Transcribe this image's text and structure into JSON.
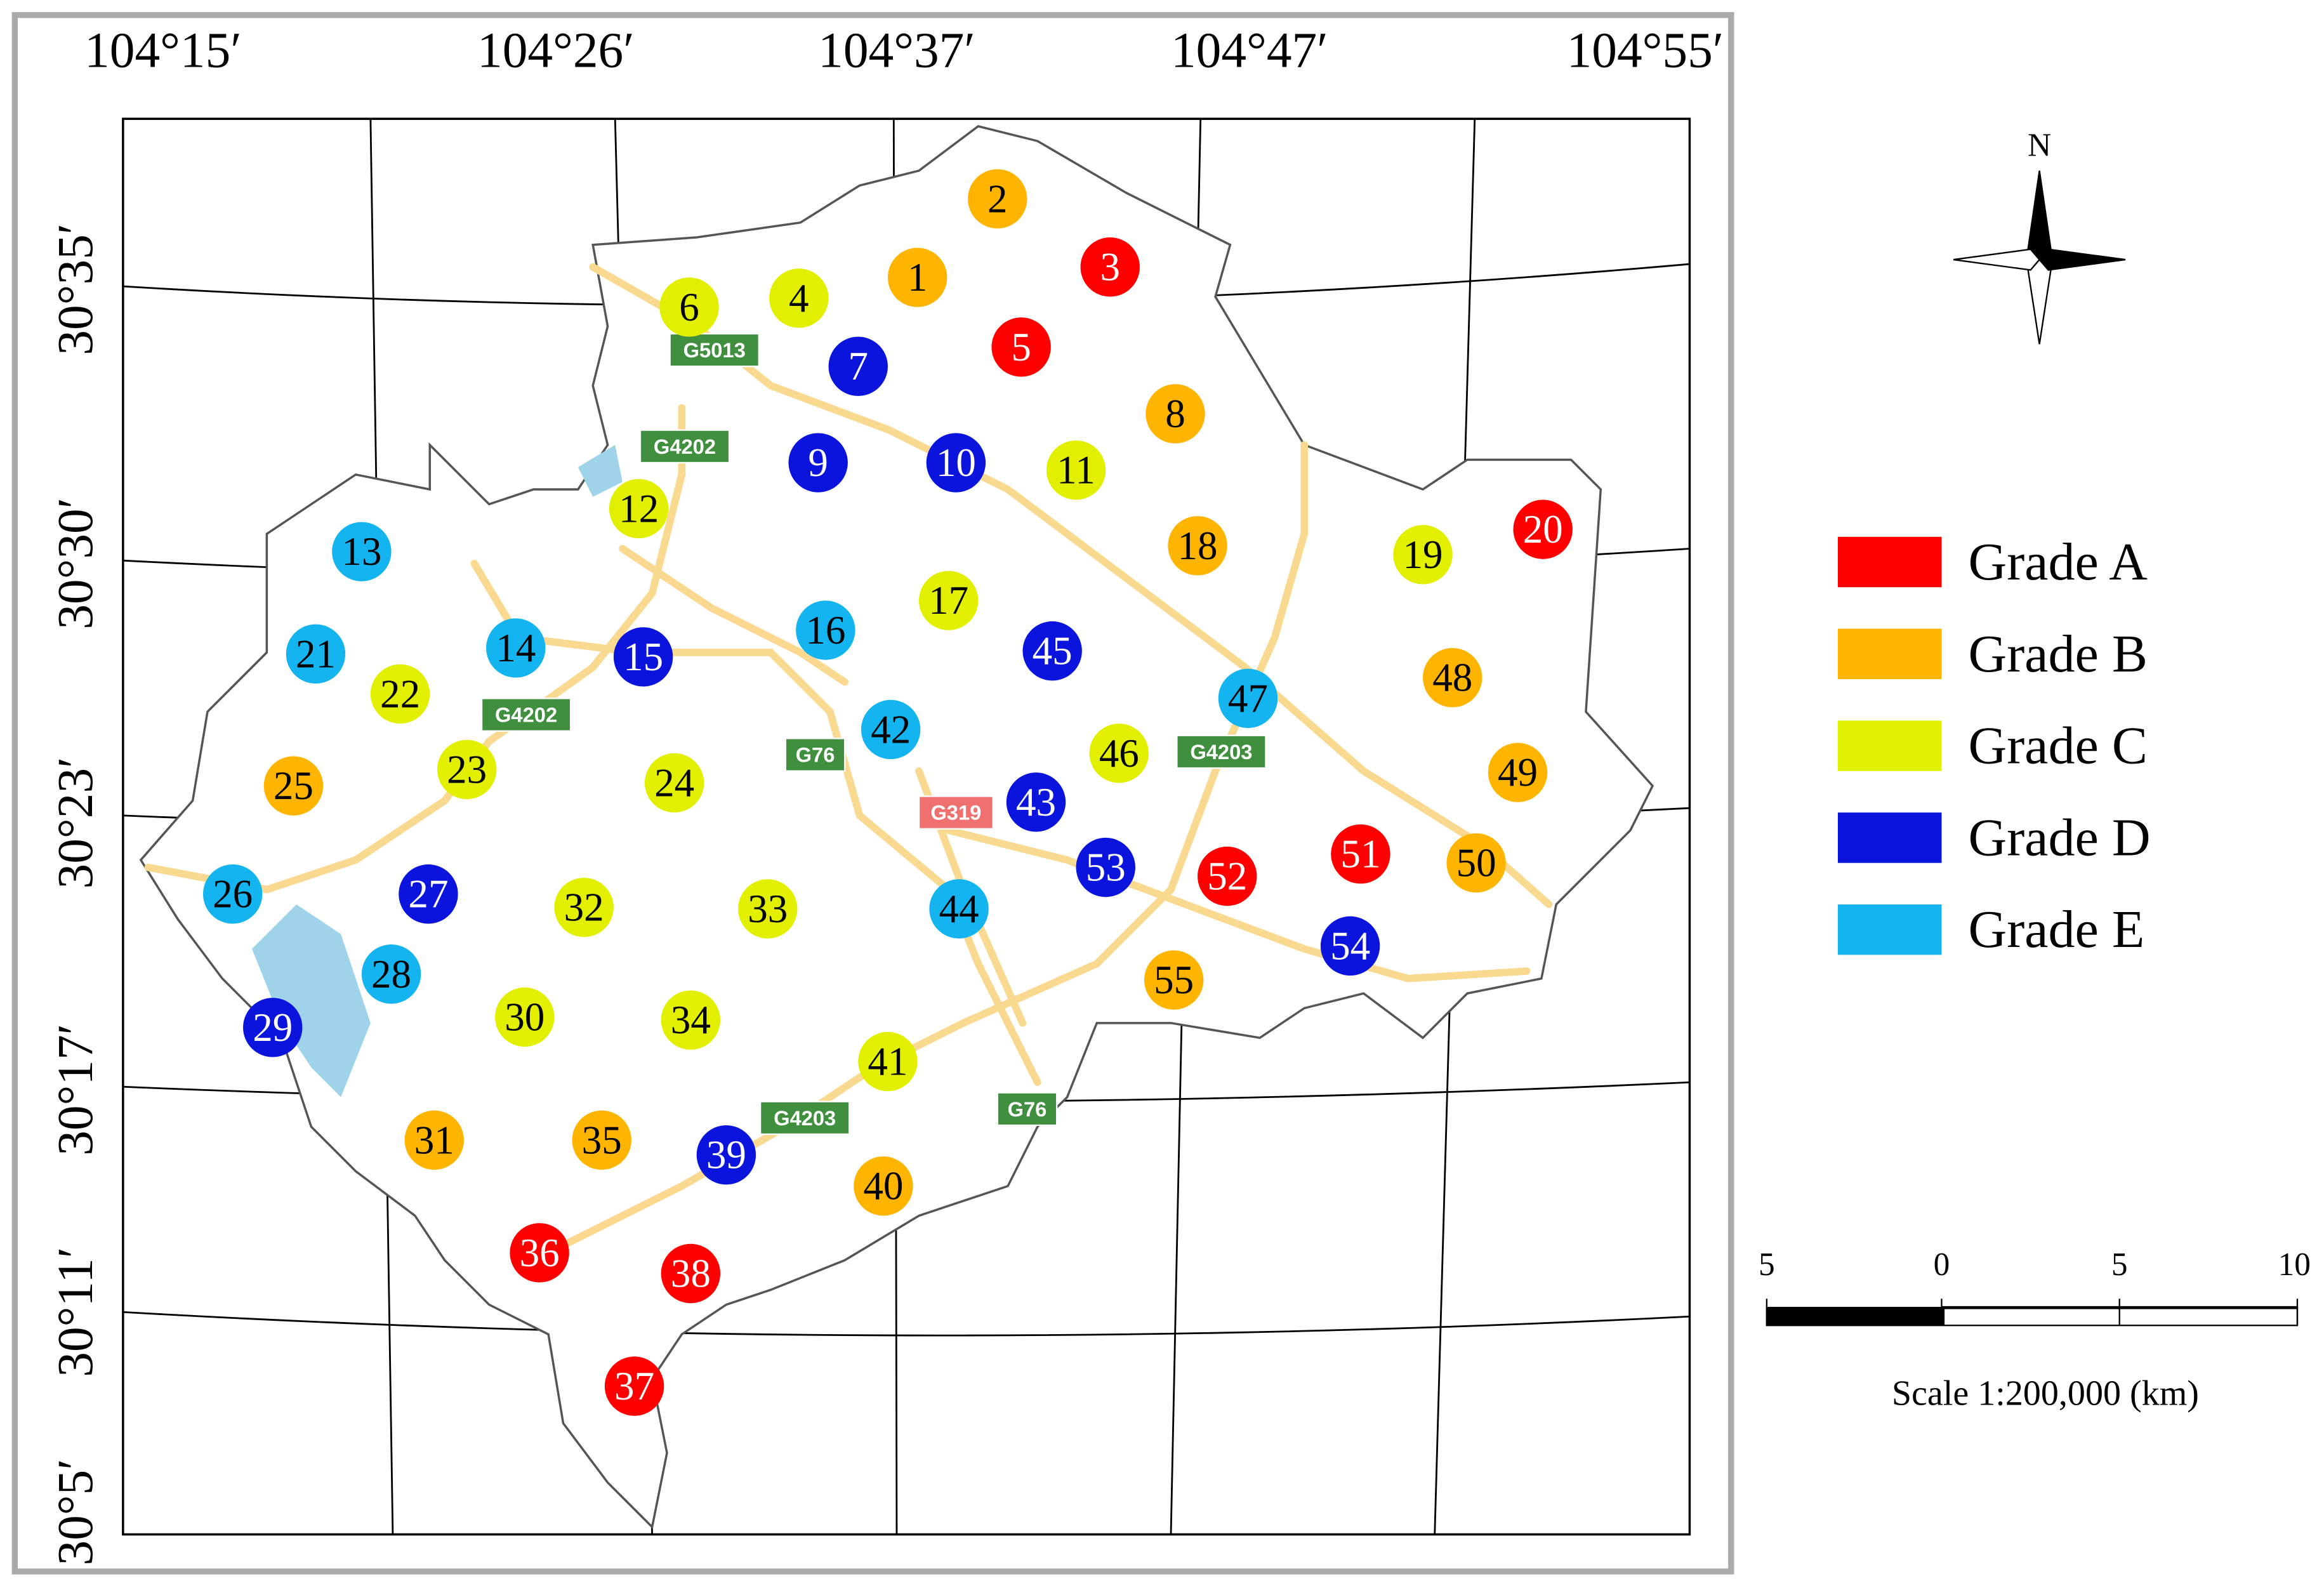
{
  "longitude_labels": [
    "104°15′",
    "104°26′",
    "104°37′",
    "104°47′",
    "104°55′"
  ],
  "latitude_labels": [
    "30°35′",
    "30°30′",
    "30°23′",
    "30°17′",
    "30°11′",
    "30°5′"
  ],
  "north_label": "N",
  "legend": [
    {
      "label": "Grade A",
      "color": "#ff0000"
    },
    {
      "label": "Grade B",
      "color": "#ffb400"
    },
    {
      "label": "Grade C",
      "color": "#e2f000"
    },
    {
      "label": "Grade D",
      "color": "#0a14dc"
    },
    {
      "label": "Grade E",
      "color": "#14b4f0"
    }
  ],
  "points": [
    {
      "label": "1",
      "color": "#ffb400"
    },
    {
      "label": "2",
      "color": "#ffb400"
    },
    {
      "label": "3",
      "color": "#ff0000"
    },
    {
      "label": "4",
      "color": "#e2f000"
    },
    {
      "label": "5",
      "color": "#ff0000"
    },
    {
      "label": "6",
      "color": "#e2f000"
    },
    {
      "label": "7",
      "color": "#0a14dc"
    },
    {
      "label": "8",
      "color": "#ffb400"
    },
    {
      "label": "9",
      "color": "#0a14dc"
    },
    {
      "label": "10",
      "color": "#0a14dc"
    },
    {
      "label": "11",
      "color": "#e2f000"
    },
    {
      "label": "12",
      "color": "#e2f000"
    },
    {
      "label": "13",
      "color": "#14b4f0"
    },
    {
      "label": "14",
      "color": "#14b4f0"
    },
    {
      "label": "15",
      "color": "#0a14dc"
    },
    {
      "label": "16",
      "color": "#14b4f0"
    },
    {
      "label": "17",
      "color": "#e2f000"
    },
    {
      "label": "18",
      "color": "#ffb400"
    },
    {
      "label": "19",
      "color": "#e2f000"
    },
    {
      "label": "20",
      "color": "#ff0000"
    },
    {
      "label": "21",
      "color": "#14b4f0"
    },
    {
      "label": "22",
      "color": "#e2f000"
    },
    {
      "label": "23",
      "color": "#e2f000"
    },
    {
      "label": "24",
      "color": "#e2f000"
    },
    {
      "label": "25",
      "color": "#ffb400"
    },
    {
      "label": "26",
      "color": "#14b4f0"
    },
    {
      "label": "27",
      "color": "#0a14dc"
    },
    {
      "label": "28",
      "color": "#14b4f0"
    },
    {
      "label": "29",
      "color": "#0a14dc"
    },
    {
      "label": "30",
      "color": "#e2f000"
    },
    {
      "label": "31",
      "color": "#ffb400"
    },
    {
      "label": "32",
      "color": "#e2f000"
    },
    {
      "label": "33",
      "color": "#e2f000"
    },
    {
      "label": "34",
      "color": "#e2f000"
    },
    {
      "label": "35",
      "color": "#ffb400"
    },
    {
      "label": "36",
      "color": "#ff0000"
    },
    {
      "label": "37",
      "color": "#ff0000"
    },
    {
      "label": "38",
      "color": "#ff0000"
    },
    {
      "label": "39",
      "color": "#0a14dc"
    },
    {
      "label": "40",
      "color": "#ffb400"
    },
    {
      "label": "41",
      "color": "#e2f000"
    },
    {
      "label": "42",
      "color": "#14b4f0"
    },
    {
      "label": "43",
      "color": "#0a14dc"
    },
    {
      "label": "44",
      "color": "#14b4f0"
    },
    {
      "label": "45",
      "color": "#0a14dc"
    },
    {
      "label": "46",
      "color": "#e2f000"
    },
    {
      "label": "47",
      "color": "#14b4f0"
    },
    {
      "label": "48",
      "color": "#ffb400"
    },
    {
      "label": "49",
      "color": "#ffb400"
    },
    {
      "label": "50",
      "color": "#ffb400"
    },
    {
      "label": "51",
      "color": "#ff0000"
    },
    {
      "label": "52",
      "color": "#ff0000"
    },
    {
      "label": "53",
      "color": "#0a14dc"
    },
    {
      "label": "54",
      "color": "#0a14dc"
    },
    {
      "label": "55",
      "color": "#ffb400"
    }
  ],
  "roads": [
    {
      "label": "G5013",
      "color": "#3f8f3f"
    },
    {
      "label": "G4202",
      "color": "#3f8f3f"
    },
    {
      "label": "G4202",
      "color": "#3f8f3f"
    },
    {
      "label": "G76",
      "color": "#3f8f3f"
    },
    {
      "label": "G319",
      "color": "#f07070"
    },
    {
      "label": "G4203",
      "color": "#3f8f3f"
    },
    {
      "label": "G4203",
      "color": "#3f8f3f"
    },
    {
      "label": "G76",
      "color": "#3f8f3f"
    }
  ],
  "scale_bar": {
    "ticks": [
      "5",
      "0",
      "5",
      "10"
    ],
    "caption": "Scale 1:200,000 (km)"
  }
}
